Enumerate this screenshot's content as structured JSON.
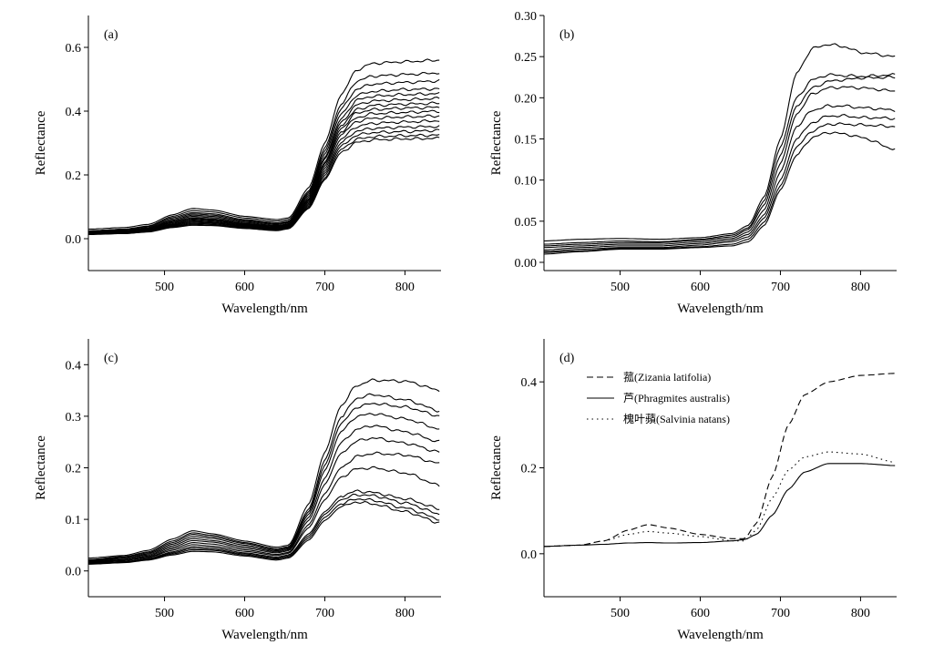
{
  "chart_data": [
    {
      "type": "line",
      "panel_label": "(a)",
      "xlabel": "Wavelength/nm",
      "ylabel": "Reflectance",
      "xlim": [
        405,
        845
      ],
      "ylim": [
        -0.1,
        0.7
      ],
      "xticks": [
        500,
        600,
        700,
        800
      ],
      "yticks": [
        0.0,
        0.2,
        0.4,
        0.6
      ],
      "ytick_decimals": 1,
      "grid": false,
      "key_x": [
        405,
        450,
        480,
        510,
        535,
        560,
        600,
        640,
        655,
        680,
        700,
        720,
        740,
        760,
        800,
        845
      ],
      "series": [
        {
          "values": [
            0.03,
            0.035,
            0.045,
            0.075,
            0.095,
            0.09,
            0.07,
            0.06,
            0.065,
            0.16,
            0.3,
            0.45,
            0.53,
            0.55,
            0.555,
            0.56
          ]
        },
        {
          "values": [
            0.025,
            0.03,
            0.04,
            0.07,
            0.088,
            0.084,
            0.065,
            0.055,
            0.06,
            0.15,
            0.285,
            0.42,
            0.495,
            0.51,
            0.515,
            0.52
          ]
        },
        {
          "values": [
            0.022,
            0.028,
            0.038,
            0.066,
            0.082,
            0.078,
            0.06,
            0.05,
            0.055,
            0.145,
            0.275,
            0.405,
            0.47,
            0.485,
            0.49,
            0.495
          ]
        },
        {
          "values": [
            0.02,
            0.026,
            0.035,
            0.062,
            0.078,
            0.074,
            0.057,
            0.047,
            0.052,
            0.14,
            0.265,
            0.39,
            0.45,
            0.462,
            0.468,
            0.47
          ]
        },
        {
          "values": [
            0.019,
            0.025,
            0.033,
            0.058,
            0.074,
            0.07,
            0.054,
            0.044,
            0.05,
            0.135,
            0.255,
            0.375,
            0.435,
            0.447,
            0.452,
            0.455
          ]
        },
        {
          "values": [
            0.018,
            0.023,
            0.031,
            0.055,
            0.07,
            0.066,
            0.051,
            0.041,
            0.047,
            0.13,
            0.25,
            0.365,
            0.42,
            0.432,
            0.436,
            0.44
          ]
        },
        {
          "values": [
            0.018,
            0.022,
            0.03,
            0.052,
            0.066,
            0.062,
            0.048,
            0.039,
            0.045,
            0.125,
            0.24,
            0.355,
            0.405,
            0.418,
            0.422,
            0.425
          ]
        },
        {
          "values": [
            0.017,
            0.021,
            0.028,
            0.05,
            0.063,
            0.06,
            0.046,
            0.037,
            0.043,
            0.122,
            0.235,
            0.345,
            0.395,
            0.405,
            0.41,
            0.412
          ]
        },
        {
          "values": [
            0.016,
            0.02,
            0.027,
            0.047,
            0.06,
            0.057,
            0.044,
            0.035,
            0.041,
            0.118,
            0.228,
            0.335,
            0.38,
            0.392,
            0.396,
            0.4
          ]
        },
        {
          "values": [
            0.016,
            0.019,
            0.026,
            0.045,
            0.057,
            0.054,
            0.042,
            0.033,
            0.039,
            0.114,
            0.22,
            0.325,
            0.368,
            0.378,
            0.382,
            0.385
          ]
        },
        {
          "values": [
            0.015,
            0.018,
            0.025,
            0.043,
            0.054,
            0.051,
            0.04,
            0.031,
            0.037,
            0.11,
            0.212,
            0.312,
            0.352,
            0.362,
            0.366,
            0.37
          ]
        },
        {
          "values": [
            0.015,
            0.018,
            0.024,
            0.041,
            0.051,
            0.049,
            0.038,
            0.03,
            0.036,
            0.106,
            0.205,
            0.3,
            0.338,
            0.346,
            0.35,
            0.352
          ]
        },
        {
          "values": [
            0.014,
            0.017,
            0.023,
            0.039,
            0.048,
            0.046,
            0.036,
            0.028,
            0.034,
            0.102,
            0.198,
            0.29,
            0.325,
            0.333,
            0.336,
            0.34
          ]
        },
        {
          "values": [
            0.014,
            0.016,
            0.022,
            0.037,
            0.045,
            0.043,
            0.034,
            0.027,
            0.033,
            0.098,
            0.19,
            0.28,
            0.312,
            0.32,
            0.323,
            0.325
          ]
        },
        {
          "values": [
            0.013,
            0.016,
            0.021,
            0.035,
            0.042,
            0.041,
            0.032,
            0.025,
            0.031,
            0.095,
            0.185,
            0.27,
            0.302,
            0.31,
            0.313,
            0.315
          ]
        }
      ]
    },
    {
      "type": "line",
      "panel_label": "(b)",
      "xlabel": "Wavelength/nm",
      "ylabel": "Reflectance",
      "xlim": [
        405,
        845
      ],
      "ylim": [
        -0.01,
        0.3
      ],
      "xticks": [
        500,
        600,
        700,
        800
      ],
      "yticks": [
        0.0,
        0.05,
        0.1,
        0.15,
        0.2,
        0.25,
        0.3
      ],
      "ytick_decimals": 2,
      "grid": false,
      "key_x": [
        405,
        450,
        500,
        550,
        600,
        640,
        660,
        680,
        700,
        720,
        740,
        760,
        780,
        800,
        845
      ],
      "series": [
        {
          "values": [
            0.026,
            0.028,
            0.029,
            0.028,
            0.03,
            0.035,
            0.045,
            0.08,
            0.15,
            0.23,
            0.26,
            0.265,
            0.262,
            0.255,
            0.25
          ]
        },
        {
          "values": [
            0.022,
            0.024,
            0.026,
            0.025,
            0.028,
            0.033,
            0.042,
            0.075,
            0.14,
            0.2,
            0.222,
            0.228,
            0.227,
            0.226,
            0.228
          ]
        },
        {
          "values": [
            0.02,
            0.022,
            0.024,
            0.024,
            0.027,
            0.031,
            0.04,
            0.07,
            0.13,
            0.19,
            0.212,
            0.22,
            0.222,
            0.224,
            0.225
          ]
        },
        {
          "values": [
            0.018,
            0.02,
            0.022,
            0.022,
            0.025,
            0.029,
            0.037,
            0.064,
            0.12,
            0.18,
            0.205,
            0.212,
            0.213,
            0.212,
            0.208
          ]
        },
        {
          "values": [
            0.015,
            0.018,
            0.02,
            0.02,
            0.023,
            0.027,
            0.034,
            0.058,
            0.11,
            0.165,
            0.185,
            0.19,
            0.19,
            0.188,
            0.185
          ]
        },
        {
          "values": [
            0.013,
            0.016,
            0.018,
            0.018,
            0.021,
            0.025,
            0.031,
            0.054,
            0.1,
            0.15,
            0.17,
            0.178,
            0.178,
            0.176,
            0.175
          ]
        },
        {
          "values": [
            0.012,
            0.014,
            0.017,
            0.017,
            0.019,
            0.022,
            0.028,
            0.049,
            0.093,
            0.14,
            0.16,
            0.168,
            0.168,
            0.167,
            0.165
          ]
        },
        {
          "values": [
            0.01,
            0.013,
            0.016,
            0.016,
            0.018,
            0.02,
            0.025,
            0.045,
            0.088,
            0.13,
            0.152,
            0.158,
            0.156,
            0.152,
            0.137
          ]
        }
      ]
    },
    {
      "type": "line",
      "panel_label": "(c)",
      "xlabel": "Wavelength/nm",
      "ylabel": "Reflectance",
      "xlim": [
        405,
        845
      ],
      "ylim": [
        -0.05,
        0.45
      ],
      "xticks": [
        500,
        600,
        700,
        800
      ],
      "yticks": [
        0.0,
        0.1,
        0.2,
        0.3,
        0.4
      ],
      "ytick_decimals": 1,
      "grid": false,
      "key_x": [
        405,
        450,
        480,
        510,
        535,
        560,
        600,
        640,
        655,
        680,
        700,
        720,
        740,
        760,
        800,
        845
      ],
      "series": [
        {
          "values": [
            0.025,
            0.03,
            0.04,
            0.062,
            0.078,
            0.072,
            0.058,
            0.046,
            0.05,
            0.13,
            0.23,
            0.32,
            0.36,
            0.37,
            0.368,
            0.35
          ]
        },
        {
          "values": [
            0.022,
            0.028,
            0.037,
            0.058,
            0.074,
            0.069,
            0.055,
            0.043,
            0.047,
            0.12,
            0.215,
            0.298,
            0.335,
            0.342,
            0.332,
            0.31
          ]
        },
        {
          "values": [
            0.021,
            0.027,
            0.035,
            0.055,
            0.071,
            0.066,
            0.053,
            0.041,
            0.045,
            0.115,
            0.205,
            0.285,
            0.318,
            0.325,
            0.318,
            0.3
          ]
        },
        {
          "values": [
            0.02,
            0.025,
            0.033,
            0.052,
            0.067,
            0.063,
            0.05,
            0.039,
            0.043,
            0.11,
            0.195,
            0.27,
            0.3,
            0.305,
            0.295,
            0.275
          ]
        },
        {
          "values": [
            0.019,
            0.024,
            0.031,
            0.049,
            0.063,
            0.059,
            0.047,
            0.037,
            0.041,
            0.104,
            0.18,
            0.248,
            0.275,
            0.282,
            0.27,
            0.25
          ]
        },
        {
          "values": [
            0.018,
            0.022,
            0.029,
            0.046,
            0.059,
            0.056,
            0.044,
            0.035,
            0.039,
            0.098,
            0.168,
            0.228,
            0.252,
            0.258,
            0.248,
            0.23
          ]
        },
        {
          "values": [
            0.017,
            0.021,
            0.027,
            0.043,
            0.055,
            0.052,
            0.041,
            0.032,
            0.036,
            0.09,
            0.15,
            0.2,
            0.222,
            0.228,
            0.225,
            0.208
          ]
        },
        {
          "values": [
            0.016,
            0.02,
            0.026,
            0.04,
            0.051,
            0.048,
            0.038,
            0.03,
            0.034,
            0.084,
            0.138,
            0.182,
            0.198,
            0.2,
            0.19,
            0.165
          ]
        },
        {
          "values": [
            0.015,
            0.018,
            0.024,
            0.037,
            0.047,
            0.045,
            0.035,
            0.027,
            0.031,
            0.072,
            0.115,
            0.145,
            0.155,
            0.152,
            0.14,
            0.12
          ]
        },
        {
          "values": [
            0.015,
            0.018,
            0.023,
            0.035,
            0.044,
            0.042,
            0.033,
            0.025,
            0.029,
            0.068,
            0.11,
            0.138,
            0.148,
            0.146,
            0.132,
            0.11
          ]
        },
        {
          "values": [
            0.014,
            0.017,
            0.022,
            0.033,
            0.041,
            0.04,
            0.031,
            0.023,
            0.027,
            0.064,
            0.104,
            0.13,
            0.14,
            0.137,
            0.122,
            0.1
          ]
        },
        {
          "values": [
            0.013,
            0.016,
            0.021,
            0.031,
            0.038,
            0.037,
            0.029,
            0.021,
            0.025,
            0.06,
            0.098,
            0.124,
            0.134,
            0.13,
            0.115,
            0.093
          ]
        }
      ]
    },
    {
      "type": "line",
      "panel_label": "(d)",
      "xlabel": "Wavelength/nm",
      "ylabel": "Reflectance",
      "xlim": [
        405,
        845
      ],
      "ylim": [
        -0.1,
        0.5
      ],
      "xticks": [
        500,
        600,
        700,
        800
      ],
      "yticks": [
        0.0,
        0.2,
        0.4
      ],
      "ytick_decimals": 1,
      "grid": false,
      "legend_position": "top-left",
      "key_x": [
        405,
        450,
        480,
        510,
        535,
        560,
        600,
        640,
        655,
        670,
        690,
        710,
        730,
        760,
        800,
        845
      ],
      "series": [
        {
          "name": "菰(Zizania latifolia)",
          "dash": "7,4",
          "values": [
            0.017,
            0.02,
            0.03,
            0.055,
            0.068,
            0.06,
            0.045,
            0.035,
            0.035,
            0.07,
            0.18,
            0.3,
            0.37,
            0.4,
            0.415,
            0.42
          ]
        },
        {
          "name": "芦(Phragmites australis)",
          "dash": "",
          "values": [
            0.017,
            0.02,
            0.022,
            0.025,
            0.026,
            0.025,
            0.026,
            0.03,
            0.033,
            0.045,
            0.09,
            0.15,
            0.19,
            0.21,
            0.21,
            0.205
          ]
        },
        {
          "name": "槐叶蘋(Salvinia natans)",
          "dash": "1.5,4",
          "values": [
            0.017,
            0.02,
            0.03,
            0.045,
            0.052,
            0.048,
            0.04,
            0.03,
            0.03,
            0.055,
            0.13,
            0.195,
            0.225,
            0.237,
            0.232,
            0.212
          ]
        }
      ]
    }
  ]
}
